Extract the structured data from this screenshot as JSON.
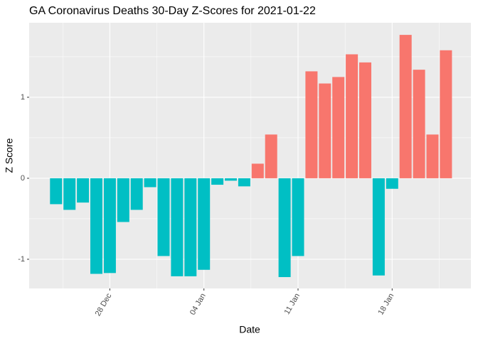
{
  "chart_data": {
    "type": "bar",
    "title": "GA Coronavirus Deaths 30-Day Z-Scores for 2021-01-22",
    "x_label": "Date",
    "y_label": "Z Score",
    "categories": [
      null,
      null,
      null,
      null,
      "28 Dec",
      null,
      null,
      null,
      null,
      null,
      null,
      "04 Jan",
      null,
      null,
      null,
      null,
      null,
      null,
      "11 Jan",
      null,
      null,
      null,
      null,
      null,
      null,
      "18 Jan",
      null,
      null,
      null,
      null
    ],
    "values": [
      -0.32,
      -0.39,
      -0.3,
      -1.18,
      -1.17,
      -0.54,
      -0.39,
      -0.11,
      -0.96,
      -1.21,
      -1.21,
      -1.13,
      -0.08,
      -0.03,
      -0.1,
      0.18,
      0.54,
      -1.22,
      -0.96,
      1.32,
      1.17,
      1.25,
      1.53,
      1.43,
      -1.2,
      -0.13,
      1.77,
      1.34,
      0.54,
      1.58
    ],
    "positive_color": "#F8766D",
    "negative_color": "#00BFC4",
    "ylim": [
      -1.36,
      1.92
    ],
    "yticks": [
      -1,
      0,
      1
    ],
    "grid": true
  }
}
